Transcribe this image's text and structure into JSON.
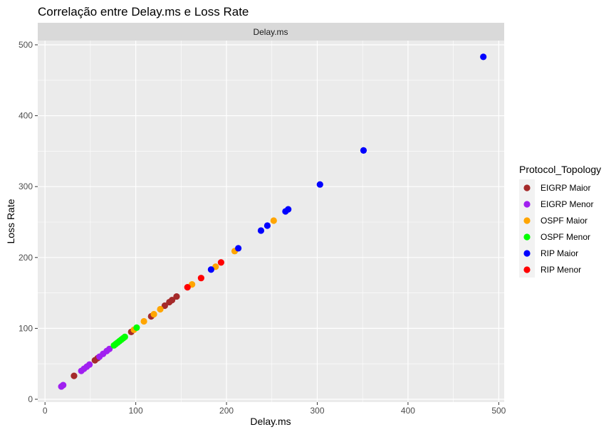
{
  "chart_data": {
    "type": "scatter",
    "title": "Correlação entre Delay.ms e Loss Rate",
    "facet_label": "Delay.ms",
    "xlabel": "Delay.ms",
    "ylabel": "Loss Rate",
    "xlim": [
      -8,
      506
    ],
    "ylim": [
      -4,
      506
    ],
    "x_ticks": [
      0,
      100,
      200,
      300,
      400,
      500
    ],
    "y_ticks": [
      0,
      100,
      200,
      300,
      400,
      500
    ],
    "grid": true,
    "legend_title": "Protocol_Topology",
    "legend_position": "right",
    "series": [
      {
        "name": "EIGRP Maior",
        "color": "#a52a2a",
        "points": [
          [
            32,
            33
          ],
          [
            55,
            55
          ],
          [
            58,
            58
          ],
          [
            95,
            95
          ],
          [
            117,
            117
          ],
          [
            132,
            132
          ],
          [
            137,
            137
          ],
          [
            140,
            140
          ],
          [
            145,
            145
          ]
        ]
      },
      {
        "name": "EIGRP Menor",
        "color": "#a020f0",
        "points": [
          [
            18,
            18
          ],
          [
            20,
            20
          ],
          [
            40,
            40
          ],
          [
            43,
            43
          ],
          [
            46,
            46
          ],
          [
            49,
            49
          ],
          [
            60,
            60
          ],
          [
            64,
            64
          ],
          [
            68,
            68
          ],
          [
            71,
            71
          ]
        ]
      },
      {
        "name": "OSPF Maior",
        "color": "#ffa500",
        "points": [
          [
            98,
            98
          ],
          [
            109,
            110
          ],
          [
            120,
            120
          ],
          [
            127,
            127
          ],
          [
            162,
            162
          ],
          [
            188,
            187
          ],
          [
            209,
            209
          ],
          [
            252,
            252
          ]
        ]
      },
      {
        "name": "OSPF Menor",
        "color": "#00ff00",
        "points": [
          [
            76,
            76
          ],
          [
            78,
            78
          ],
          [
            80,
            80
          ],
          [
            82,
            82
          ],
          [
            84,
            84
          ],
          [
            86,
            86
          ],
          [
            88,
            88
          ],
          [
            101,
            101
          ]
        ]
      },
      {
        "name": "RIP Maior",
        "color": "#0000ff",
        "points": [
          [
            183,
            183
          ],
          [
            213,
            213
          ],
          [
            238,
            238
          ],
          [
            245,
            245
          ],
          [
            265,
            265
          ],
          [
            268,
            268
          ],
          [
            303,
            303
          ],
          [
            351,
            351
          ],
          [
            483,
            483
          ]
        ]
      },
      {
        "name": "RIP Menor",
        "color": "#ff0000",
        "points": [
          [
            157,
            158
          ],
          [
            172,
            171
          ],
          [
            194,
            193
          ]
        ]
      }
    ]
  }
}
